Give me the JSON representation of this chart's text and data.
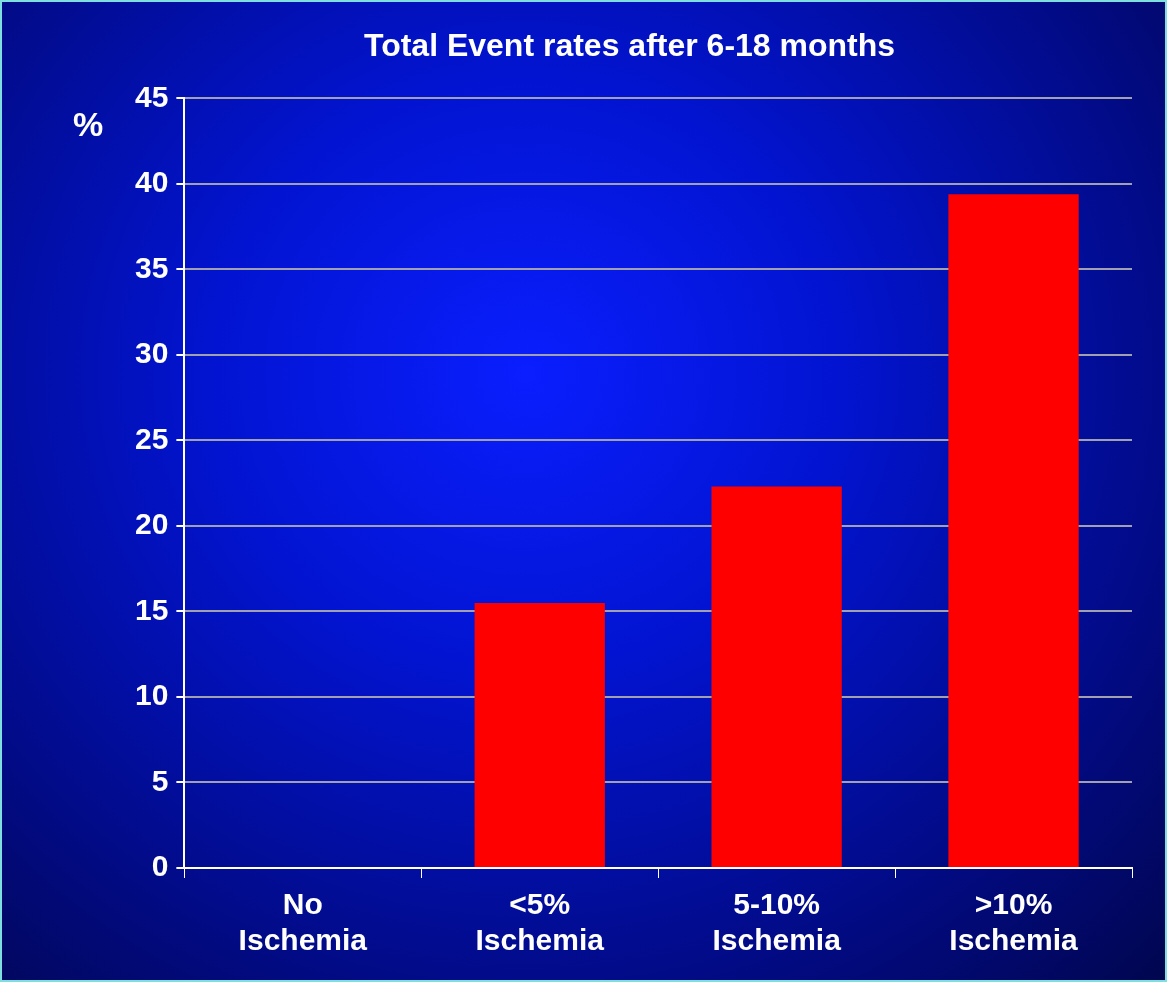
{
  "chart_data": {
    "type": "bar",
    "title": "Total Event rates after 6-18 months",
    "ylabel": "%",
    "categories": [
      "No Ischemia",
      "<5% Ischemia",
      "5-10% Ischemia",
      ">10% Ischemia"
    ],
    "values": [
      0,
      15.5,
      22.3,
      39.4
    ],
    "color": "#ff0000",
    "ylim": [
      0,
      45
    ],
    "yticks": [
      0,
      5,
      10,
      15,
      20,
      25,
      30,
      35,
      40,
      45
    ],
    "grid": "y",
    "legend": false
  }
}
